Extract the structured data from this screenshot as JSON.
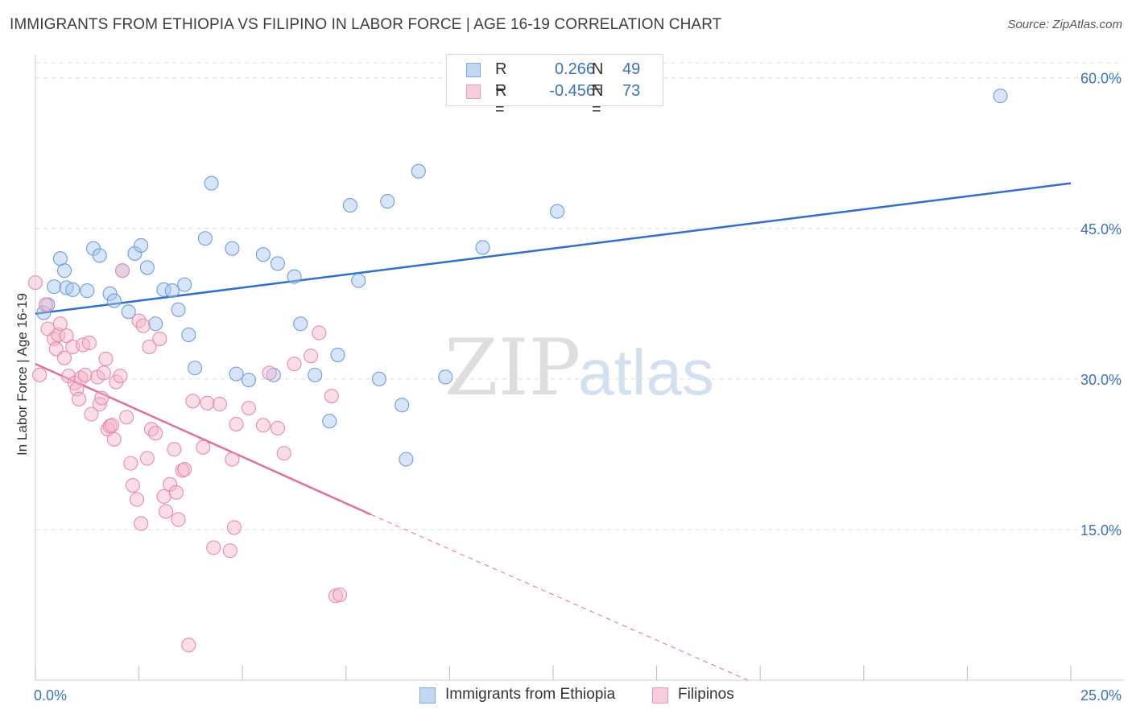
{
  "title": "IMMIGRANTS FROM ETHIOPIA VS FILIPINO IN LABOR FORCE | AGE 16-19 CORRELATION CHART",
  "source": "Source: ZipAtlas.com",
  "watermark": {
    "part1": "ZIP",
    "part2": "atlas"
  },
  "legend_top": [
    {
      "r_label": "R =",
      "r_value": "0.266",
      "n_label": "N =",
      "n_value": "49",
      "color": "#a9c6ef"
    },
    {
      "r_label": "R =",
      "r_value": "-0.456",
      "n_label": "N =",
      "n_value": "73",
      "color": "#f5b6c9"
    }
  ],
  "legend_bottom": [
    {
      "label": "Immigrants from Ethiopia",
      "color": "#a9c6ef"
    },
    {
      "label": "Filipinos",
      "color": "#f5b6c9"
    }
  ],
  "chart_data": {
    "type": "scatter",
    "ylabel": "In Labor Force | Age 16-19",
    "xlim": [
      0,
      25
    ],
    "ylim": [
      0,
      61.5
    ],
    "x_tick_labels": [
      "0.0%",
      "25.0%"
    ],
    "y_ticks": [
      15,
      30,
      45,
      60
    ],
    "y_tick_labels": [
      "15.0%",
      "30.0%",
      "45.0%",
      "60.0%"
    ],
    "grid": "horizontal dashed",
    "series": [
      {
        "name": "Immigrants from Ethiopia",
        "color": "#a9c6ef",
        "stroke": "#6d9ce0",
        "line_color": "#2f6fcd",
        "trend": {
          "x0": 0,
          "y0": 36.5,
          "x1": 25,
          "y1": 49.5
        },
        "points": [
          [
            0.2,
            36.6
          ],
          [
            0.3,
            37.4
          ],
          [
            0.45,
            39.2
          ],
          [
            0.6,
            42.0
          ],
          [
            0.7,
            40.8
          ],
          [
            0.75,
            39.1
          ],
          [
            0.9,
            38.9
          ],
          [
            1.25,
            38.8
          ],
          [
            1.4,
            43.0
          ],
          [
            1.55,
            42.3
          ],
          [
            1.8,
            38.5
          ],
          [
            1.9,
            37.8
          ],
          [
            2.1,
            40.8
          ],
          [
            2.25,
            36.7
          ],
          [
            2.4,
            42.5
          ],
          [
            2.55,
            43.3
          ],
          [
            2.7,
            41.1
          ],
          [
            2.9,
            35.5
          ],
          [
            3.1,
            38.9
          ],
          [
            3.3,
            38.8
          ],
          [
            3.45,
            36.9
          ],
          [
            3.6,
            39.4
          ],
          [
            3.7,
            34.4
          ],
          [
            3.85,
            31.1
          ],
          [
            4.1,
            44.0
          ],
          [
            4.25,
            49.5
          ],
          [
            4.75,
            43.0
          ],
          [
            4.85,
            30.5
          ],
          [
            5.15,
            29.9
          ],
          [
            5.5,
            42.4
          ],
          [
            5.75,
            30.4
          ],
          [
            5.85,
            41.5
          ],
          [
            6.25,
            40.2
          ],
          [
            6.4,
            35.5
          ],
          [
            6.75,
            30.4
          ],
          [
            7.1,
            25.8
          ],
          [
            7.3,
            32.4
          ],
          [
            7.6,
            47.3
          ],
          [
            7.8,
            39.8
          ],
          [
            8.3,
            30.0
          ],
          [
            8.5,
            47.7
          ],
          [
            8.85,
            27.4
          ],
          [
            8.95,
            22.0
          ],
          [
            9.25,
            50.7
          ],
          [
            9.9,
            30.2
          ],
          [
            10.8,
            43.1
          ],
          [
            11.5,
            58.6
          ],
          [
            12.6,
            46.7
          ],
          [
            23.3,
            58.2
          ]
        ]
      },
      {
        "name": "Filipinos",
        "color": "#f5b6c9",
        "stroke": "#e98aa8",
        "line_color": "#e0709a",
        "trend": {
          "x0": 0,
          "y0": 31.5,
          "x1": 8.1,
          "y1": 16.5
        },
        "trend_ext": {
          "x0": 8.1,
          "y0": 16.5,
          "x1": 17.2,
          "y1": 0
        },
        "points": [
          [
            0.0,
            39.6
          ],
          [
            0.1,
            30.4
          ],
          [
            0.25,
            37.4
          ],
          [
            0.3,
            35.0
          ],
          [
            0.45,
            34.0
          ],
          [
            0.5,
            33.0
          ],
          [
            0.55,
            34.4
          ],
          [
            0.6,
            35.5
          ],
          [
            0.7,
            32.1
          ],
          [
            0.75,
            34.3
          ],
          [
            0.8,
            30.3
          ],
          [
            0.9,
            33.2
          ],
          [
            0.95,
            29.6
          ],
          [
            1.0,
            29.0
          ],
          [
            1.05,
            28.0
          ],
          [
            1.1,
            30.1
          ],
          [
            1.15,
            33.4
          ],
          [
            1.2,
            30.4
          ],
          [
            1.3,
            33.6
          ],
          [
            1.35,
            26.5
          ],
          [
            1.5,
            30.2
          ],
          [
            1.55,
            27.5
          ],
          [
            1.6,
            28.1
          ],
          [
            1.65,
            30.6
          ],
          [
            1.7,
            32.0
          ],
          [
            1.75,
            25.0
          ],
          [
            1.8,
            25.3
          ],
          [
            1.85,
            25.4
          ],
          [
            1.9,
            24.0
          ],
          [
            1.95,
            29.7
          ],
          [
            2.05,
            30.3
          ],
          [
            2.1,
            40.8
          ],
          [
            2.2,
            26.2
          ],
          [
            2.3,
            21.6
          ],
          [
            2.35,
            19.4
          ],
          [
            2.45,
            18.0
          ],
          [
            2.5,
            35.8
          ],
          [
            2.55,
            15.6
          ],
          [
            2.6,
            35.3
          ],
          [
            2.7,
            22.1
          ],
          [
            2.75,
            33.2
          ],
          [
            2.8,
            25.0
          ],
          [
            2.9,
            24.6
          ],
          [
            3.0,
            34.0
          ],
          [
            3.1,
            18.3
          ],
          [
            3.15,
            16.8
          ],
          [
            3.25,
            19.5
          ],
          [
            3.35,
            23.0
          ],
          [
            3.4,
            18.7
          ],
          [
            3.45,
            16.0
          ],
          [
            3.55,
            20.9
          ],
          [
            3.6,
            21.0
          ],
          [
            3.7,
            3.5
          ],
          [
            3.8,
            27.8
          ],
          [
            4.05,
            23.2
          ],
          [
            4.15,
            27.6
          ],
          [
            4.3,
            13.2
          ],
          [
            4.45,
            27.5
          ],
          [
            4.7,
            12.9
          ],
          [
            4.75,
            22.0
          ],
          [
            4.8,
            15.2
          ],
          [
            4.85,
            25.5
          ],
          [
            5.15,
            27.1
          ],
          [
            5.5,
            25.4
          ],
          [
            5.65,
            30.6
          ],
          [
            5.85,
            25.1
          ],
          [
            6.0,
            22.6
          ],
          [
            6.25,
            31.5
          ],
          [
            6.65,
            32.3
          ],
          [
            6.85,
            34.6
          ],
          [
            7.15,
            28.3
          ],
          [
            7.25,
            8.4
          ],
          [
            7.35,
            8.5
          ]
        ]
      }
    ]
  }
}
